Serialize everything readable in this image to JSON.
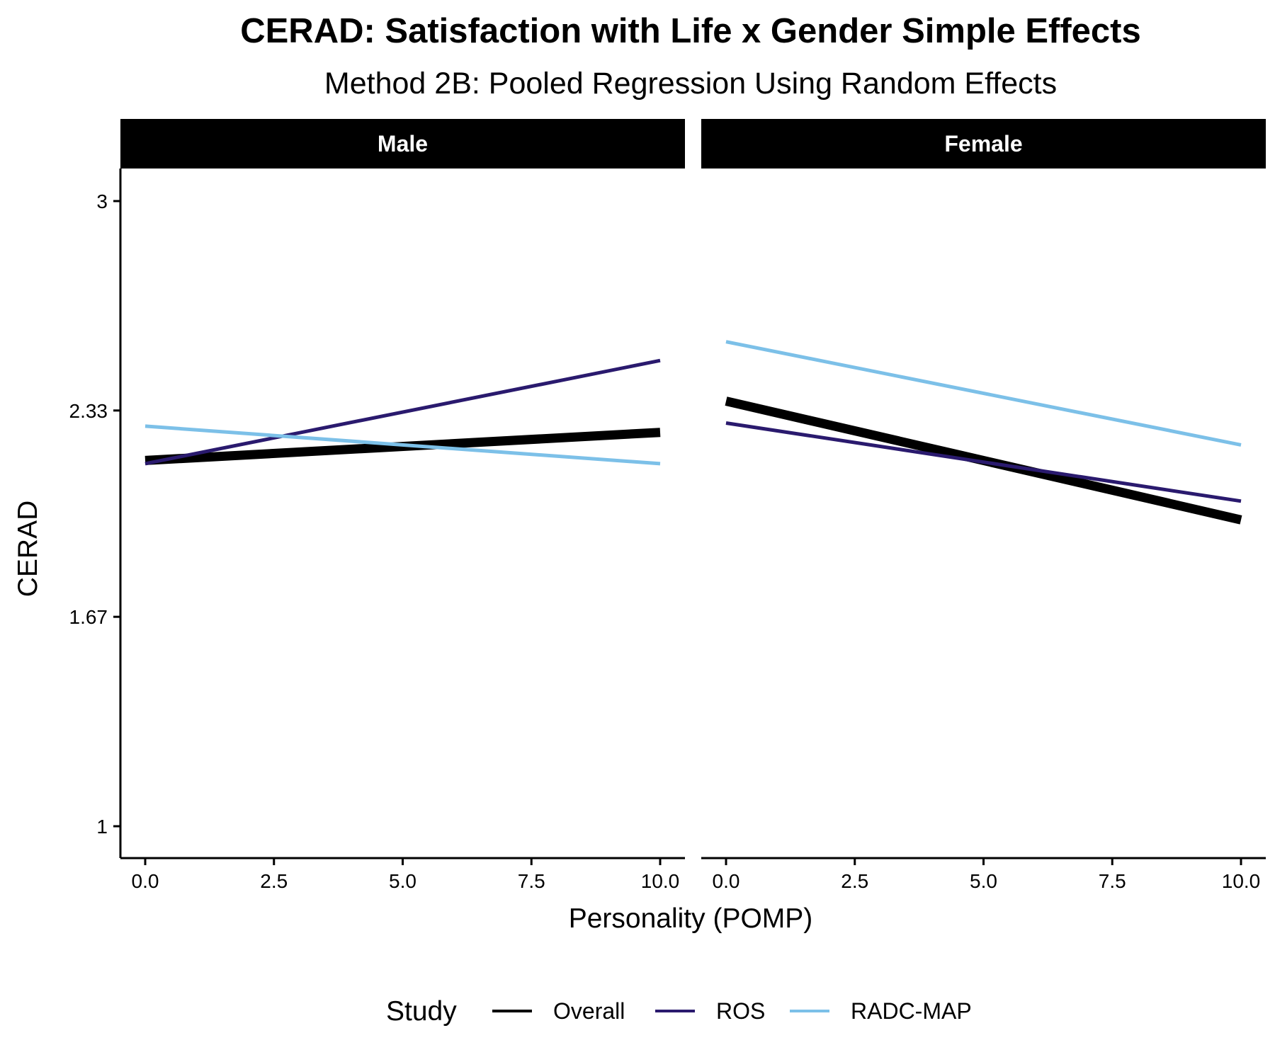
{
  "chart_data": {
    "type": "line",
    "title": "CERAD: Satisfaction with Life x Gender Simple Effects",
    "subtitle": "Method 2B: Pooled Regression Using Random Effects",
    "xlabel": "Personality (POMP)",
    "ylabel": "CERAD",
    "xlim": [
      0,
      10
    ],
    "ylim": [
      1,
      3
    ],
    "x_ticks": [
      0,
      2.5,
      5,
      7.5,
      10
    ],
    "x_tick_labels": [
      "0.0",
      "2.5",
      "5.0",
      "7.5",
      "10.0"
    ],
    "y_ticks": [
      1,
      1.67,
      2.33,
      3
    ],
    "y_tick_labels": [
      "1",
      "1.67",
      "2.33",
      "3"
    ],
    "grid": false,
    "legend": {
      "title": "Study",
      "position": "bottom",
      "entries": [
        "Overall",
        "ROS",
        "RADC-MAP"
      ]
    },
    "series_colors": {
      "Overall": "#000000",
      "ROS": "#2A1A6E",
      "RADC-MAP": "#7CC0E8"
    },
    "panels": [
      {
        "label": "Male",
        "series": [
          {
            "name": "Overall",
            "x": [
              0,
              10
            ],
            "y": [
              2.17,
              2.26
            ]
          },
          {
            "name": "ROS",
            "x": [
              0,
              10
            ],
            "y": [
              2.16,
              2.49
            ]
          },
          {
            "name": "RADC-MAP",
            "x": [
              0,
              10
            ],
            "y": [
              2.28,
              2.16
            ]
          }
        ]
      },
      {
        "label": "Female",
        "series": [
          {
            "name": "Overall",
            "x": [
              0,
              10
            ],
            "y": [
              2.36,
              1.98
            ]
          },
          {
            "name": "ROS",
            "x": [
              0,
              10
            ],
            "y": [
              2.29,
              2.04
            ]
          },
          {
            "name": "RADC-MAP",
            "x": [
              0,
              10
            ],
            "y": [
              2.55,
              2.22
            ]
          }
        ]
      }
    ]
  }
}
